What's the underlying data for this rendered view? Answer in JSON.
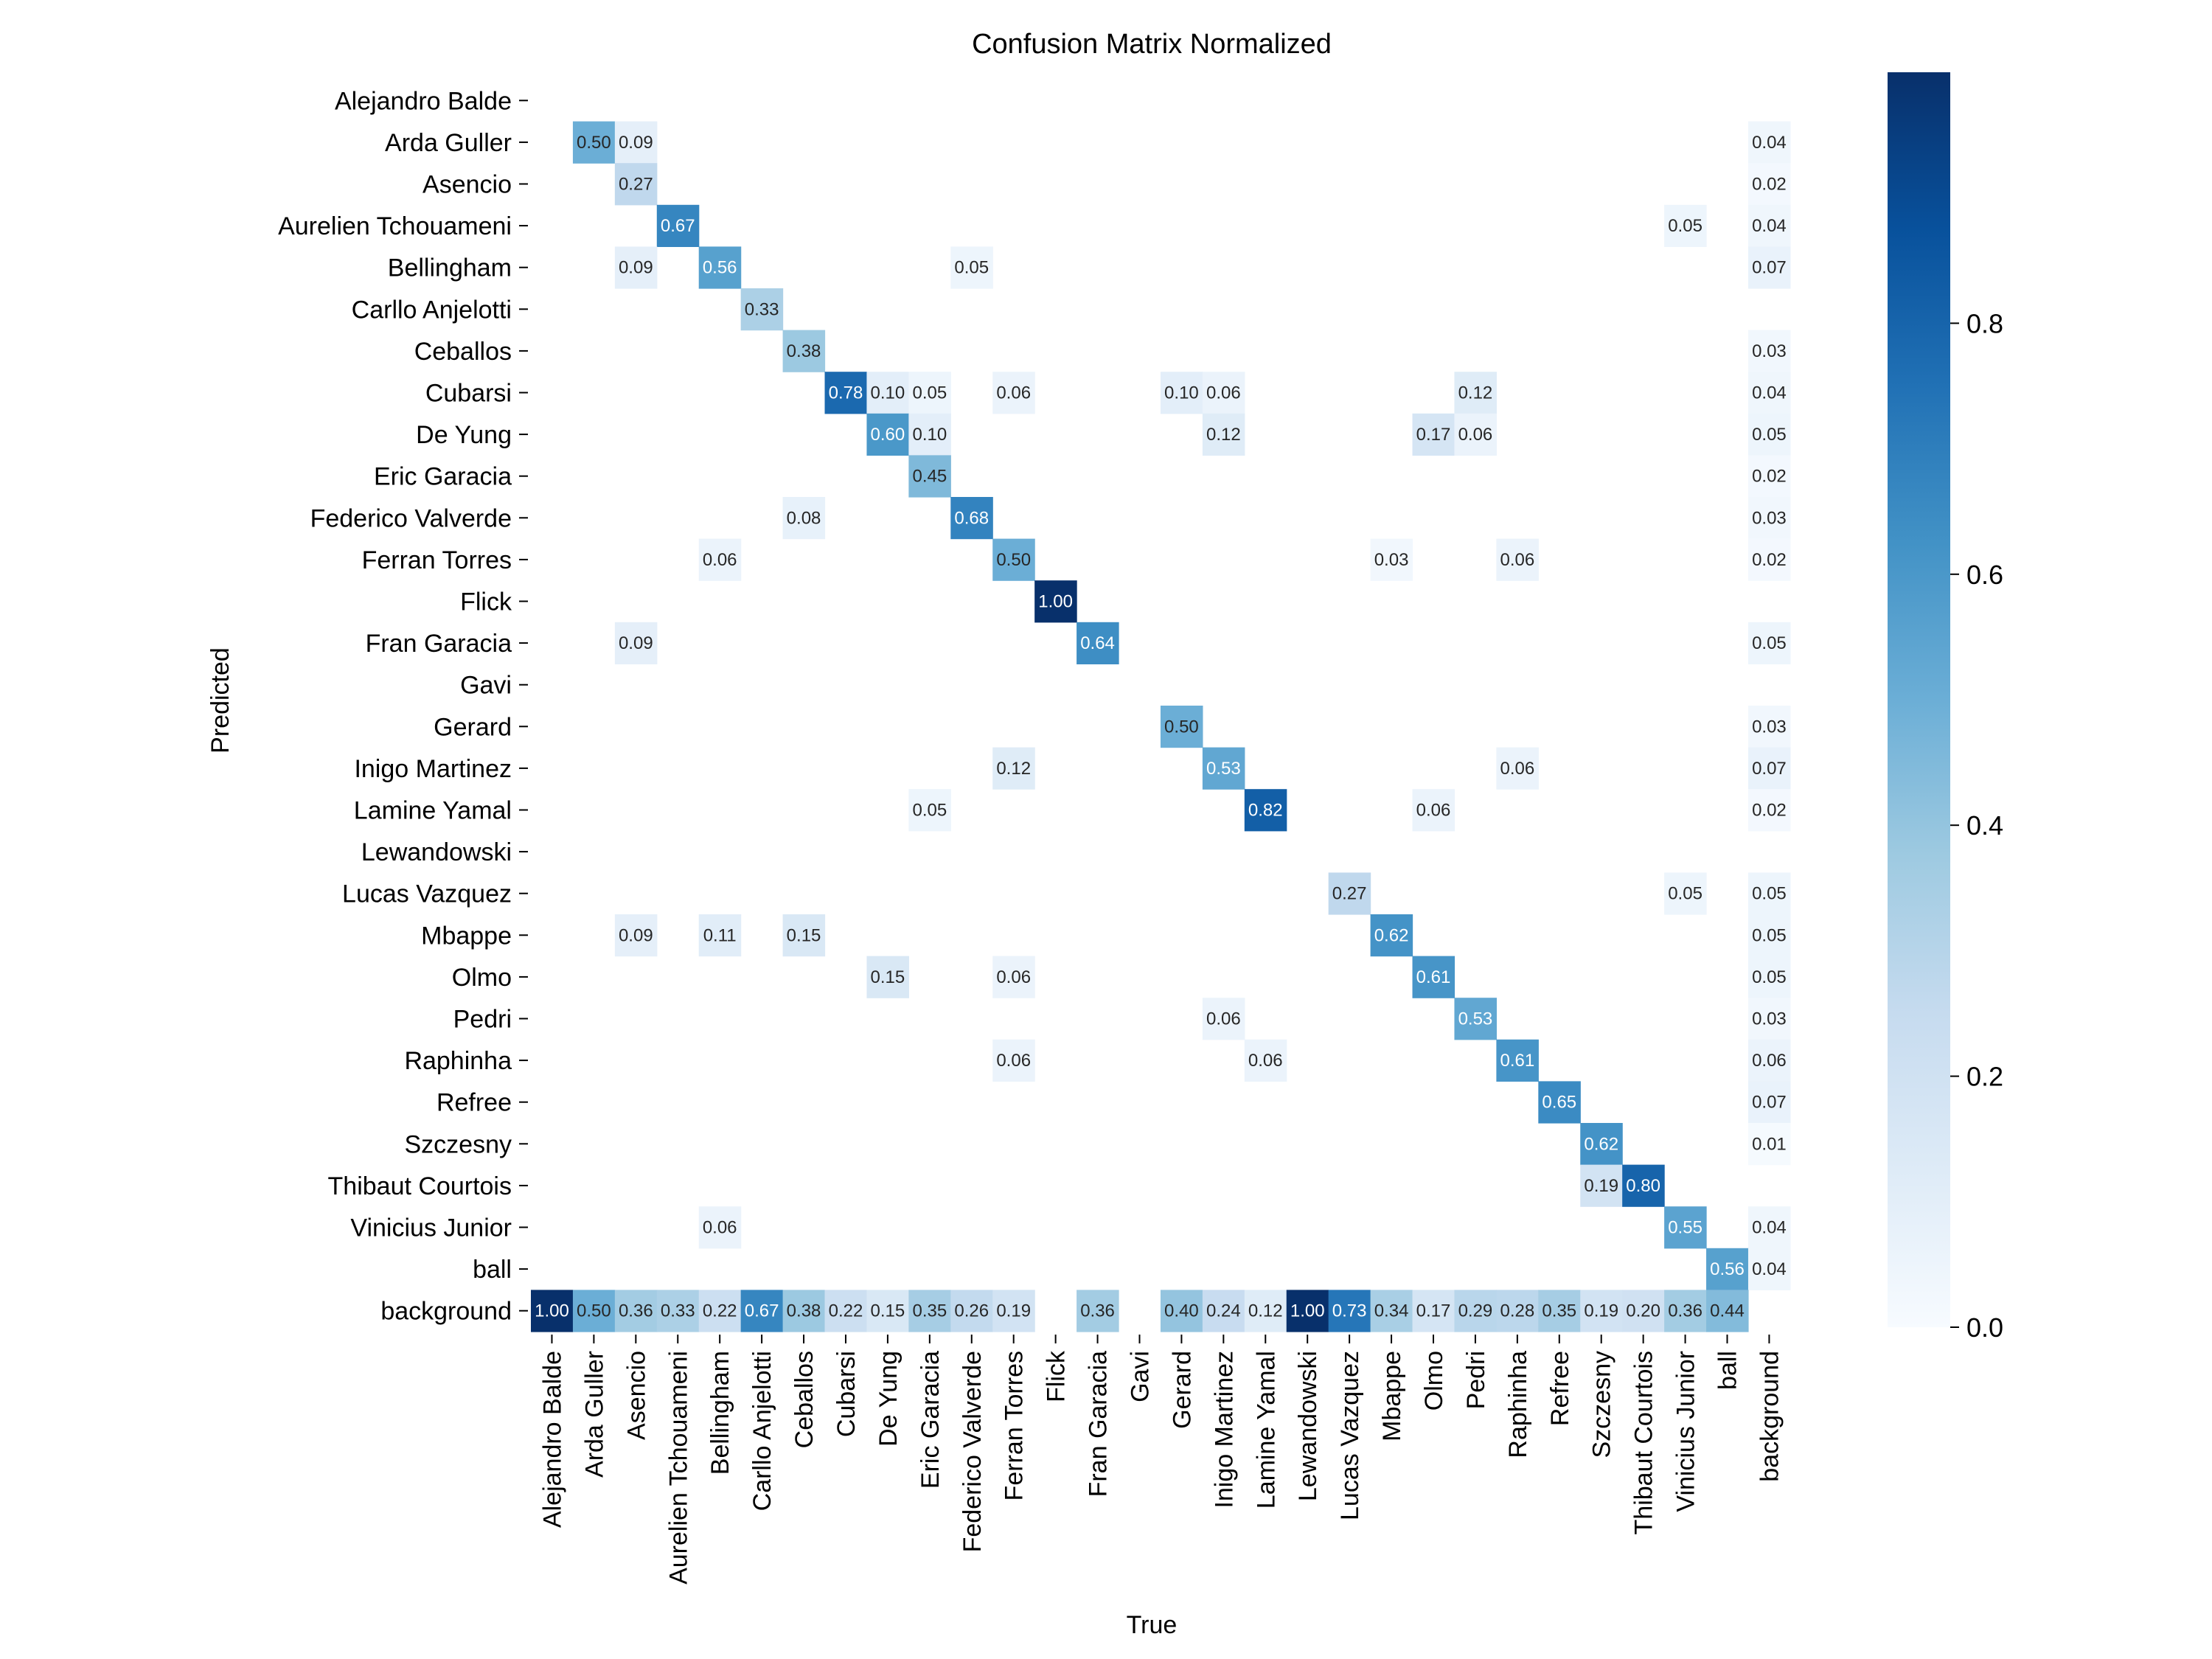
{
  "chart_data": {
    "type": "heatmap",
    "title": "Confusion Matrix Normalized",
    "xlabel": "True",
    "ylabel": "Predicted",
    "x_categories": [
      "Alejandro Balde",
      "Arda Guller",
      "Asencio",
      "Aurelien Tchouameni",
      "Bellingham",
      "Carllo Anjelotti",
      "Ceballos",
      "Cubarsi",
      "De Yung",
      "Eric Garacia",
      "Federico Valverde",
      "Ferran Torres",
      "Flick",
      "Fran Garacia",
      "Gavi",
      "Gerard",
      "Inigo Martinez",
      "Lamine Yamal",
      "Lewandowski",
      "Lucas Vazquez",
      "Mbappe",
      "Olmo",
      "Pedri",
      "Raphinha",
      "Refree",
      "Szczesny",
      "Thibaut Courtois",
      "Vinicius Junior",
      "ball",
      "background"
    ],
    "y_categories": [
      "Alejandro Balde",
      "Arda Guller",
      "Asencio",
      "Aurelien Tchouameni",
      "Bellingham",
      "Carllo Anjelotti",
      "Ceballos",
      "Cubarsi",
      "De Yung",
      "Eric Garacia",
      "Federico Valverde",
      "Ferran Torres",
      "Flick",
      "Fran Garacia",
      "Gavi",
      "Gerard",
      "Inigo Martinez",
      "Lamine Yamal",
      "Lewandowski",
      "Lucas Vazquez",
      "Mbappe",
      "Olmo",
      "Pedri",
      "Raphinha",
      "Refree",
      "Szczesny",
      "Thibaut Courtois",
      "Vinicius Junior",
      "ball",
      "background"
    ],
    "cells": [
      {
        "row": 1,
        "col": 1,
        "value": 0.5,
        "label": "0.50"
      },
      {
        "row": 1,
        "col": 2,
        "value": 0.09,
        "label": "0.09"
      },
      {
        "row": 1,
        "col": 29,
        "value": 0.04,
        "label": "0.04"
      },
      {
        "row": 2,
        "col": 2,
        "value": 0.27,
        "label": "0.27"
      },
      {
        "row": 2,
        "col": 29,
        "value": 0.02,
        "label": "0.02"
      },
      {
        "row": 3,
        "col": 3,
        "value": 0.67,
        "label": "0.67"
      },
      {
        "row": 3,
        "col": 27,
        "value": 0.05,
        "label": "0.05"
      },
      {
        "row": 3,
        "col": 29,
        "value": 0.04,
        "label": "0.04"
      },
      {
        "row": 4,
        "col": 2,
        "value": 0.09,
        "label": "0.09"
      },
      {
        "row": 4,
        "col": 4,
        "value": 0.56,
        "label": "0.56"
      },
      {
        "row": 4,
        "col": 10,
        "value": 0.05,
        "label": "0.05"
      },
      {
        "row": 4,
        "col": 29,
        "value": 0.07,
        "label": "0.07"
      },
      {
        "row": 5,
        "col": 5,
        "value": 0.33,
        "label": "0.33"
      },
      {
        "row": 6,
        "col": 6,
        "value": 0.38,
        "label": "0.38"
      },
      {
        "row": 6,
        "col": 29,
        "value": 0.03,
        "label": "0.03"
      },
      {
        "row": 7,
        "col": 7,
        "value": 0.78,
        "label": "0.78"
      },
      {
        "row": 7,
        "col": 8,
        "value": 0.1,
        "label": "0.10"
      },
      {
        "row": 7,
        "col": 9,
        "value": 0.05,
        "label": "0.05"
      },
      {
        "row": 7,
        "col": 11,
        "value": 0.06,
        "label": "0.06"
      },
      {
        "row": 7,
        "col": 15,
        "value": 0.1,
        "label": "0.10"
      },
      {
        "row": 7,
        "col": 16,
        "value": 0.06,
        "label": "0.06"
      },
      {
        "row": 7,
        "col": 22,
        "value": 0.12,
        "label": "0.12"
      },
      {
        "row": 7,
        "col": 29,
        "value": 0.04,
        "label": "0.04"
      },
      {
        "row": 8,
        "col": 8,
        "value": 0.6,
        "label": "0.60"
      },
      {
        "row": 8,
        "col": 9,
        "value": 0.1,
        "label": "0.10"
      },
      {
        "row": 8,
        "col": 16,
        "value": 0.12,
        "label": "0.12"
      },
      {
        "row": 8,
        "col": 21,
        "value": 0.17,
        "label": "0.17"
      },
      {
        "row": 8,
        "col": 22,
        "value": 0.06,
        "label": "0.06"
      },
      {
        "row": 8,
        "col": 29,
        "value": 0.05,
        "label": "0.05"
      },
      {
        "row": 9,
        "col": 9,
        "value": 0.45,
        "label": "0.45"
      },
      {
        "row": 9,
        "col": 29,
        "value": 0.02,
        "label": "0.02"
      },
      {
        "row": 10,
        "col": 6,
        "value": 0.08,
        "label": "0.08"
      },
      {
        "row": 10,
        "col": 10,
        "value": 0.68,
        "label": "0.68"
      },
      {
        "row": 10,
        "col": 29,
        "value": 0.03,
        "label": "0.03"
      },
      {
        "row": 11,
        "col": 4,
        "value": 0.06,
        "label": "0.06"
      },
      {
        "row": 11,
        "col": 11,
        "value": 0.5,
        "label": "0.50"
      },
      {
        "row": 11,
        "col": 20,
        "value": 0.03,
        "label": "0.03"
      },
      {
        "row": 11,
        "col": 23,
        "value": 0.06,
        "label": "0.06"
      },
      {
        "row": 11,
        "col": 29,
        "value": 0.02,
        "label": "0.02"
      },
      {
        "row": 12,
        "col": 12,
        "value": 1.0,
        "label": "1.00"
      },
      {
        "row": 13,
        "col": 2,
        "value": 0.09,
        "label": "0.09"
      },
      {
        "row": 13,
        "col": 13,
        "value": 0.64,
        "label": "0.64"
      },
      {
        "row": 13,
        "col": 29,
        "value": 0.05,
        "label": "0.05"
      },
      {
        "row": 15,
        "col": 15,
        "value": 0.5,
        "label": "0.50"
      },
      {
        "row": 15,
        "col": 29,
        "value": 0.03,
        "label": "0.03"
      },
      {
        "row": 16,
        "col": 11,
        "value": 0.12,
        "label": "0.12"
      },
      {
        "row": 16,
        "col": 16,
        "value": 0.53,
        "label": "0.53"
      },
      {
        "row": 16,
        "col": 23,
        "value": 0.06,
        "label": "0.06"
      },
      {
        "row": 16,
        "col": 29,
        "value": 0.07,
        "label": "0.07"
      },
      {
        "row": 17,
        "col": 9,
        "value": 0.05,
        "label": "0.05"
      },
      {
        "row": 17,
        "col": 17,
        "value": 0.82,
        "label": "0.82"
      },
      {
        "row": 17,
        "col": 21,
        "value": 0.06,
        "label": "0.06"
      },
      {
        "row": 17,
        "col": 29,
        "value": 0.02,
        "label": "0.02"
      },
      {
        "row": 19,
        "col": 19,
        "value": 0.27,
        "label": "0.27"
      },
      {
        "row": 19,
        "col": 27,
        "value": 0.05,
        "label": "0.05"
      },
      {
        "row": 19,
        "col": 29,
        "value": 0.05,
        "label": "0.05"
      },
      {
        "row": 20,
        "col": 2,
        "value": 0.09,
        "label": "0.09"
      },
      {
        "row": 20,
        "col": 4,
        "value": 0.11,
        "label": "0.11"
      },
      {
        "row": 20,
        "col": 6,
        "value": 0.15,
        "label": "0.15"
      },
      {
        "row": 20,
        "col": 20,
        "value": 0.62,
        "label": "0.62"
      },
      {
        "row": 20,
        "col": 29,
        "value": 0.05,
        "label": "0.05"
      },
      {
        "row": 21,
        "col": 8,
        "value": 0.15,
        "label": "0.15"
      },
      {
        "row": 21,
        "col": 11,
        "value": 0.06,
        "label": "0.06"
      },
      {
        "row": 21,
        "col": 21,
        "value": 0.61,
        "label": "0.61"
      },
      {
        "row": 21,
        "col": 29,
        "value": 0.05,
        "label": "0.05"
      },
      {
        "row": 22,
        "col": 16,
        "value": 0.06,
        "label": "0.06"
      },
      {
        "row": 22,
        "col": 22,
        "value": 0.53,
        "label": "0.53"
      },
      {
        "row": 22,
        "col": 29,
        "value": 0.03,
        "label": "0.03"
      },
      {
        "row": 23,
        "col": 11,
        "value": 0.06,
        "label": "0.06"
      },
      {
        "row": 23,
        "col": 17,
        "value": 0.06,
        "label": "0.06"
      },
      {
        "row": 23,
        "col": 23,
        "value": 0.61,
        "label": "0.61"
      },
      {
        "row": 23,
        "col": 29,
        "value": 0.06,
        "label": "0.06"
      },
      {
        "row": 24,
        "col": 24,
        "value": 0.65,
        "label": "0.65"
      },
      {
        "row": 24,
        "col": 29,
        "value": 0.07,
        "label": "0.07"
      },
      {
        "row": 25,
        "col": 25,
        "value": 0.62,
        "label": "0.62"
      },
      {
        "row": 25,
        "col": 29,
        "value": 0.01,
        "label": "0.01"
      },
      {
        "row": 26,
        "col": 25,
        "value": 0.19,
        "label": "0.19"
      },
      {
        "row": 26,
        "col": 26,
        "value": 0.8,
        "label": "0.80"
      },
      {
        "row": 27,
        "col": 4,
        "value": 0.06,
        "label": "0.06"
      },
      {
        "row": 27,
        "col": 27,
        "value": 0.55,
        "label": "0.55"
      },
      {
        "row": 27,
        "col": 29,
        "value": 0.04,
        "label": "0.04"
      },
      {
        "row": 28,
        "col": 28,
        "value": 0.56,
        "label": "0.56"
      },
      {
        "row": 28,
        "col": 29,
        "value": 0.04,
        "label": "0.04"
      },
      {
        "row": 29,
        "col": 0,
        "value": 1.0,
        "label": "1.00"
      },
      {
        "row": 29,
        "col": 1,
        "value": 0.5,
        "label": "0.50"
      },
      {
        "row": 29,
        "col": 2,
        "value": 0.36,
        "label": "0.36"
      },
      {
        "row": 29,
        "col": 3,
        "value": 0.33,
        "label": "0.33"
      },
      {
        "row": 29,
        "col": 4,
        "value": 0.22,
        "label": "0.22"
      },
      {
        "row": 29,
        "col": 5,
        "value": 0.67,
        "label": "0.67"
      },
      {
        "row": 29,
        "col": 6,
        "value": 0.38,
        "label": "0.38"
      },
      {
        "row": 29,
        "col": 7,
        "value": 0.22,
        "label": "0.22"
      },
      {
        "row": 29,
        "col": 8,
        "value": 0.15,
        "label": "0.15"
      },
      {
        "row": 29,
        "col": 9,
        "value": 0.35,
        "label": "0.35"
      },
      {
        "row": 29,
        "col": 10,
        "value": 0.26,
        "label": "0.26"
      },
      {
        "row": 29,
        "col": 11,
        "value": 0.19,
        "label": "0.19"
      },
      {
        "row": 29,
        "col": 13,
        "value": 0.36,
        "label": "0.36"
      },
      {
        "row": 29,
        "col": 15,
        "value": 0.4,
        "label": "0.40"
      },
      {
        "row": 29,
        "col": 16,
        "value": 0.24,
        "label": "0.24"
      },
      {
        "row": 29,
        "col": 17,
        "value": 0.12,
        "label": "0.12"
      },
      {
        "row": 29,
        "col": 18,
        "value": 1.0,
        "label": "1.00"
      },
      {
        "row": 29,
        "col": 19,
        "value": 0.73,
        "label": "0.73"
      },
      {
        "row": 29,
        "col": 20,
        "value": 0.34,
        "label": "0.34"
      },
      {
        "row": 29,
        "col": 21,
        "value": 0.17,
        "label": "0.17"
      },
      {
        "row": 29,
        "col": 22,
        "value": 0.29,
        "label": "0.29"
      },
      {
        "row": 29,
        "col": 23,
        "value": 0.28,
        "label": "0.28"
      },
      {
        "row": 29,
        "col": 24,
        "value": 0.35,
        "label": "0.35"
      },
      {
        "row": 29,
        "col": 25,
        "value": 0.19,
        "label": "0.19"
      },
      {
        "row": 29,
        "col": 26,
        "value": 0.2,
        "label": "0.20"
      },
      {
        "row": 29,
        "col": 27,
        "value": 0.36,
        "label": "0.36"
      },
      {
        "row": 29,
        "col": 28,
        "value": 0.44,
        "label": "0.44"
      }
    ],
    "colorbar": {
      "colormap": "Blues",
      "range": [
        0,
        1
      ],
      "ticks": [
        0.0,
        0.2,
        0.4,
        0.6,
        0.8
      ],
      "tick_labels": [
        "0.0",
        "0.2",
        "0.4",
        "0.6",
        "0.8"
      ]
    },
    "colors": {
      "low": "#f7fbff",
      "high": "#08306b",
      "text_dark": "#262626",
      "text_light": "#ffffff"
    },
    "grid": false
  }
}
